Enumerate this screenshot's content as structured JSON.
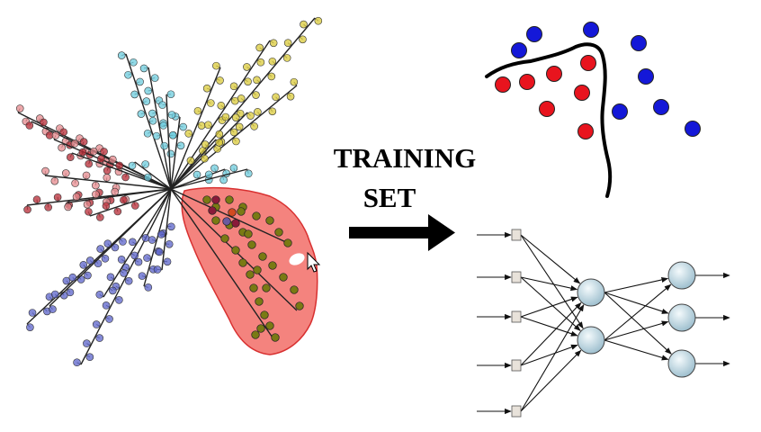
{
  "arrow_label": {
    "line1": "TRAINING",
    "line2": "SET"
  },
  "colors": {
    "cluster_pink": "#e58a8e",
    "cluster_darkred": "#b52a34",
    "cluster_blue": "#5b63c9",
    "cluster_cyan": "#6ccbdc",
    "cluster_yellow": "#d9c93a",
    "cluster_olive": "#7a7a14",
    "highlight_fill": "#f07f7a",
    "highlight_stroke": "#e02020",
    "class_red": "#e8141e",
    "class_blue": "#1418d8",
    "node_fill": "#c9dfe8",
    "input_fill": "#e8e2da"
  },
  "icons": [
    "mouse-cursor-icon",
    "right-arrow-icon"
  ]
}
